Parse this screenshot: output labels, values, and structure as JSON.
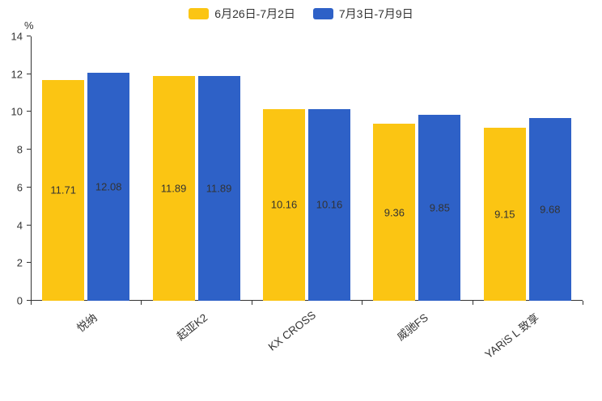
{
  "legend": {
    "items": [
      {
        "label": "6月26日-7月2日",
        "color": "#FBC513"
      },
      {
        "label": "7月3日-7月9日",
        "color": "#2E61C7"
      }
    ]
  },
  "chart_data": {
    "type": "bar",
    "title": "",
    "unit_label": "%",
    "categories": [
      "悦纳",
      "起亚K2",
      "KX CROSS",
      "威驰FS",
      "YARiS L 致享"
    ],
    "series": [
      {
        "name": "6月26日-7月2日",
        "color": "#FBC513",
        "values": [
          11.71,
          11.89,
          10.16,
          9.36,
          9.15
        ]
      },
      {
        "name": "7月3日-7月9日",
        "color": "#2E61C7",
        "values": [
          12.08,
          11.89,
          10.16,
          9.85,
          9.68
        ]
      }
    ],
    "ylim": [
      0,
      14
    ],
    "ytick_step": 2,
    "ytick_labels": [
      "0",
      "2",
      "4",
      "6",
      "8",
      "10",
      "12",
      "14"
    ],
    "grid": false,
    "legend_position": "top",
    "value_labels_shown": true
  }
}
